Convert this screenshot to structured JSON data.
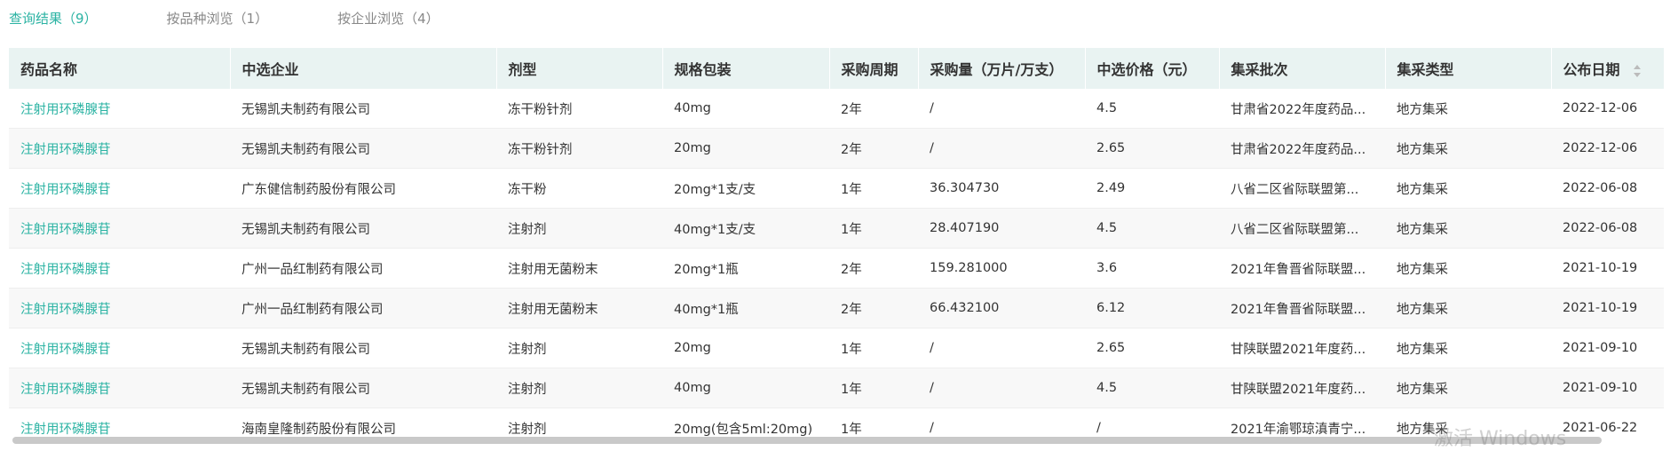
{
  "tabs": [
    "查询结果（9）",
    "按品种浏览（1）",
    "按企业浏览（4）"
  ],
  "table": {
    "headers": [
      "药品名称",
      "中选企业",
      "剂型",
      "规格包装",
      "采购周期",
      "采购量（万片/万支）",
      "中选价格（元）",
      "集采批次",
      "集采类型",
      "公布日期"
    ],
    "rows": [
      [
        "注射用环磷腺苷",
        "无锡凯夫制药有限公司",
        "冻干粉针剂",
        "40mg",
        "2年",
        "/",
        "4.5",
        "甘肃省2022年度药品...",
        "地方集采",
        "2022-12-06"
      ],
      [
        "注射用环磷腺苷",
        "无锡凯夫制药有限公司",
        "冻干粉针剂",
        "20mg",
        "2年",
        "/",
        "2.65",
        "甘肃省2022年度药品...",
        "地方集采",
        "2022-12-06"
      ],
      [
        "注射用环磷腺苷",
        "广东健信制药股份有限公司",
        "冻干粉",
        "20mg*1支/支",
        "1年",
        "36.304730",
        "2.49",
        "八省二区省际联盟第...",
        "地方集采",
        "2022-06-08"
      ],
      [
        "注射用环磷腺苷",
        "无锡凯夫制药有限公司",
        "注射剂",
        "40mg*1支/支",
        "1年",
        "28.407190",
        "4.5",
        "八省二区省际联盟第...",
        "地方集采",
        "2022-06-08"
      ],
      [
        "注射用环磷腺苷",
        "广州一品红制药有限公司",
        "注射用无菌粉末",
        "20mg*1瓶",
        "2年",
        "159.281000",
        "3.6",
        "2021年鲁晋省际联盟...",
        "地方集采",
        "2021-10-19"
      ],
      [
        "注射用环磷腺苷",
        "广州一品红制药有限公司",
        "注射用无菌粉末",
        "40mg*1瓶",
        "2年",
        "66.432100",
        "6.12",
        "2021年鲁晋省际联盟...",
        "地方集采",
        "2021-10-19"
      ],
      [
        "注射用环磷腺苷",
        "无锡凯夫制药有限公司",
        "注射剂",
        "20mg",
        "1年",
        "/",
        "2.65",
        "甘陕联盟2021年度药...",
        "地方集采",
        "2021-09-10"
      ],
      [
        "注射用环磷腺苷",
        "无锡凯夫制药有限公司",
        "注射剂",
        "40mg",
        "1年",
        "/",
        "4.5",
        "甘陕联盟2021年度药...",
        "地方集采",
        "2021-09-10"
      ],
      [
        "注射用环磷腺苷",
        "海南皇隆制药股份有限公司",
        "注射剂",
        "20mg(包含5ml:20mg)",
        "1年",
        "/",
        "/",
        "2021年渝鄂琼滇青宁...",
        "地方集采",
        "2021-06-22"
      ]
    ]
  },
  "watermark": "激活 Windows"
}
